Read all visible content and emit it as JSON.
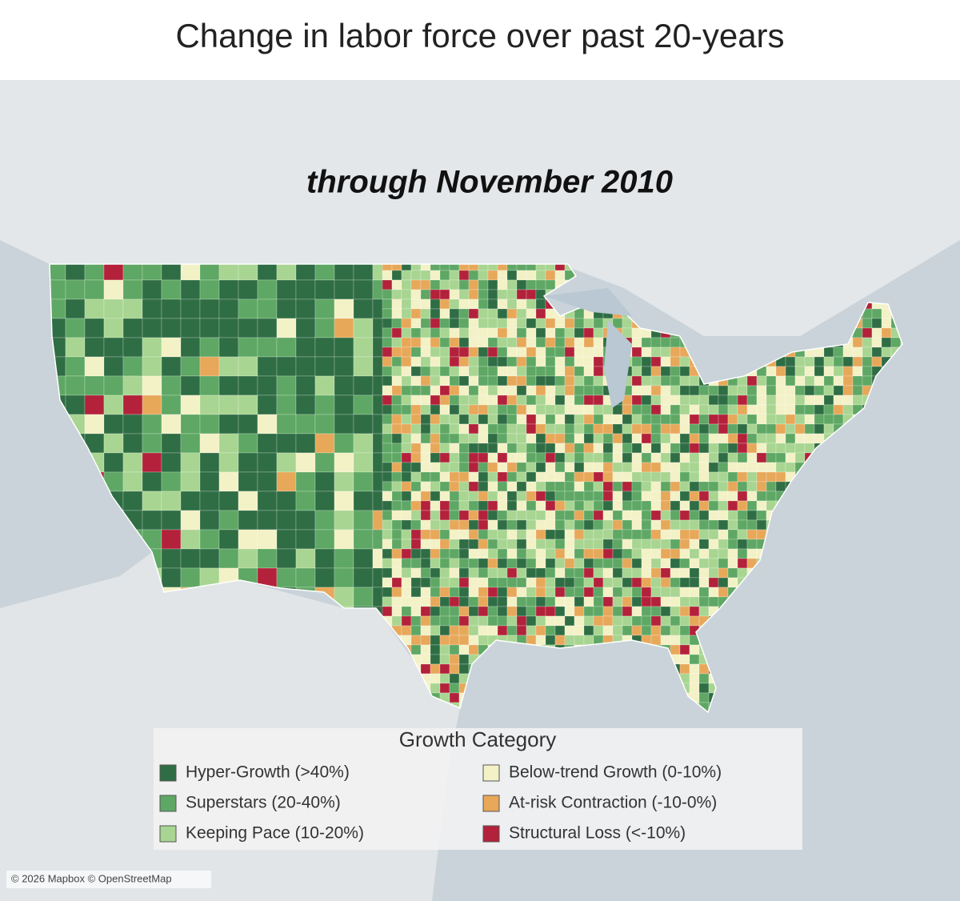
{
  "title": "Change in labor force over past 20-years",
  "subtitle": "through November 2010",
  "legend": {
    "title": "Growth Category",
    "items": [
      {
        "label": "Hyper-Growth (>40%)",
        "color": "#2f6d44"
      },
      {
        "label": "Superstars (20-40%)",
        "color": "#5ea764"
      },
      {
        "label": "Keeping Pace (10-20%)",
        "color": "#a8d591"
      },
      {
        "label": "Below-trend Growth (0-10%)",
        "color": "#f3f1c6"
      },
      {
        "label": "At-risk Contraction (-10-0%)",
        "color": "#e7a85a"
      },
      {
        "label": "Structural Loss (<-10%)",
        "color": "#b3213a"
      }
    ]
  },
  "attribution": "© 2026 Mapbox © OpenStreetMap"
}
